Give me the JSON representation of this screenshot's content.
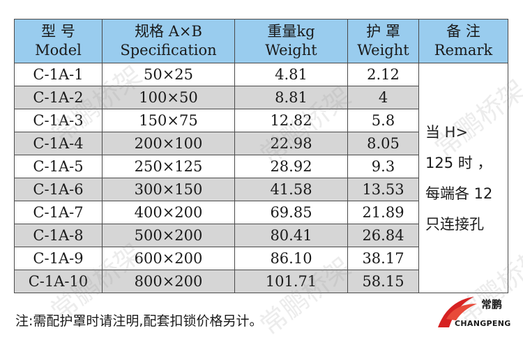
{
  "table": {
    "headers": [
      {
        "zh": "型  号",
        "en": "Model"
      },
      {
        "zh": "规格 A×B",
        "en": "Specification"
      },
      {
        "zh": "重量kg",
        "en": "Weight"
      },
      {
        "zh": "护  罩",
        "en": "Weight"
      },
      {
        "zh": "备  注",
        "en": "Remark"
      }
    ],
    "rows": [
      {
        "model": "C-1A-1",
        "spec": "50×25",
        "weight": "4.81",
        "cover": "2.12"
      },
      {
        "model": "C-1A-2",
        "spec": "100×50",
        "weight": "8.81",
        "cover": "4"
      },
      {
        "model": "C-1A-3",
        "spec": "150×75",
        "weight": "12.82",
        "cover": "5.8"
      },
      {
        "model": "C-1A-4",
        "spec": "200×100",
        "weight": "22.98",
        "cover": "8.05"
      },
      {
        "model": "C-1A-5",
        "spec": "250×125",
        "weight": "28.92",
        "cover": "9.3"
      },
      {
        "model": "C-1A-6",
        "spec": "300×150",
        "weight": "41.58",
        "cover": "13.53"
      },
      {
        "model": "C-1A-7",
        "spec": "400×200",
        "weight": "69.85",
        "cover": "21.89"
      },
      {
        "model": "C-1A-8",
        "spec": "500×200",
        "weight": "80.41",
        "cover": "26.84"
      },
      {
        "model": "C-1A-9",
        "spec": "600×200",
        "weight": "86.10",
        "cover": "38.17"
      },
      {
        "model": "C-1A-10",
        "spec": "800×200",
        "weight": "101.71",
        "cover": "58.15"
      }
    ],
    "remark_lines": [
      "当  H>",
      "125 时 ，",
      "每端各 12",
      "只连接孔"
    ]
  },
  "note": "注:需配护罩时请注明,配套扣锁价格另计。",
  "watermark": "常鹏桥架",
  "logo": {
    "name_zh": "常鹏",
    "name_en": "CHANGPENG"
  },
  "colors": {
    "header_bg": "#99ccee",
    "stripe": "#d6d6d6",
    "logo_red": "#d62222"
  }
}
